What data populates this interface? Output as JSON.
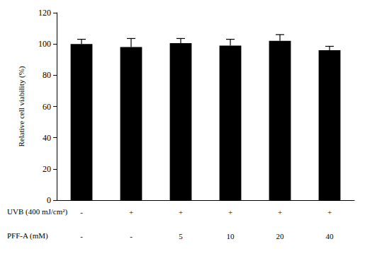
{
  "chart_data": {
    "type": "bar",
    "y_label": "Relative cell viability (%)",
    "categories": [
      null,
      null,
      null,
      null,
      null,
      null
    ],
    "values": [
      100,
      98,
      100.5,
      99,
      102,
      96
    ],
    "errors": [
      3,
      5.5,
      3,
      4,
      4,
      2.5
    ],
    "color": "#000000",
    "ylim": [
      0,
      120
    ],
    "yticks": [
      0,
      20,
      40,
      60,
      80,
      100,
      120
    ],
    "grid": false,
    "treatment_table": {
      "rows": [
        {
          "label": "UVB (400 mJ/cm²)",
          "values": [
            "-",
            "+",
            "+",
            "+",
            "+",
            "+"
          ]
        },
        {
          "label": "PFF-A (mM)",
          "values": [
            "-",
            "-",
            "5",
            "10",
            "20",
            "40"
          ]
        }
      ]
    }
  }
}
